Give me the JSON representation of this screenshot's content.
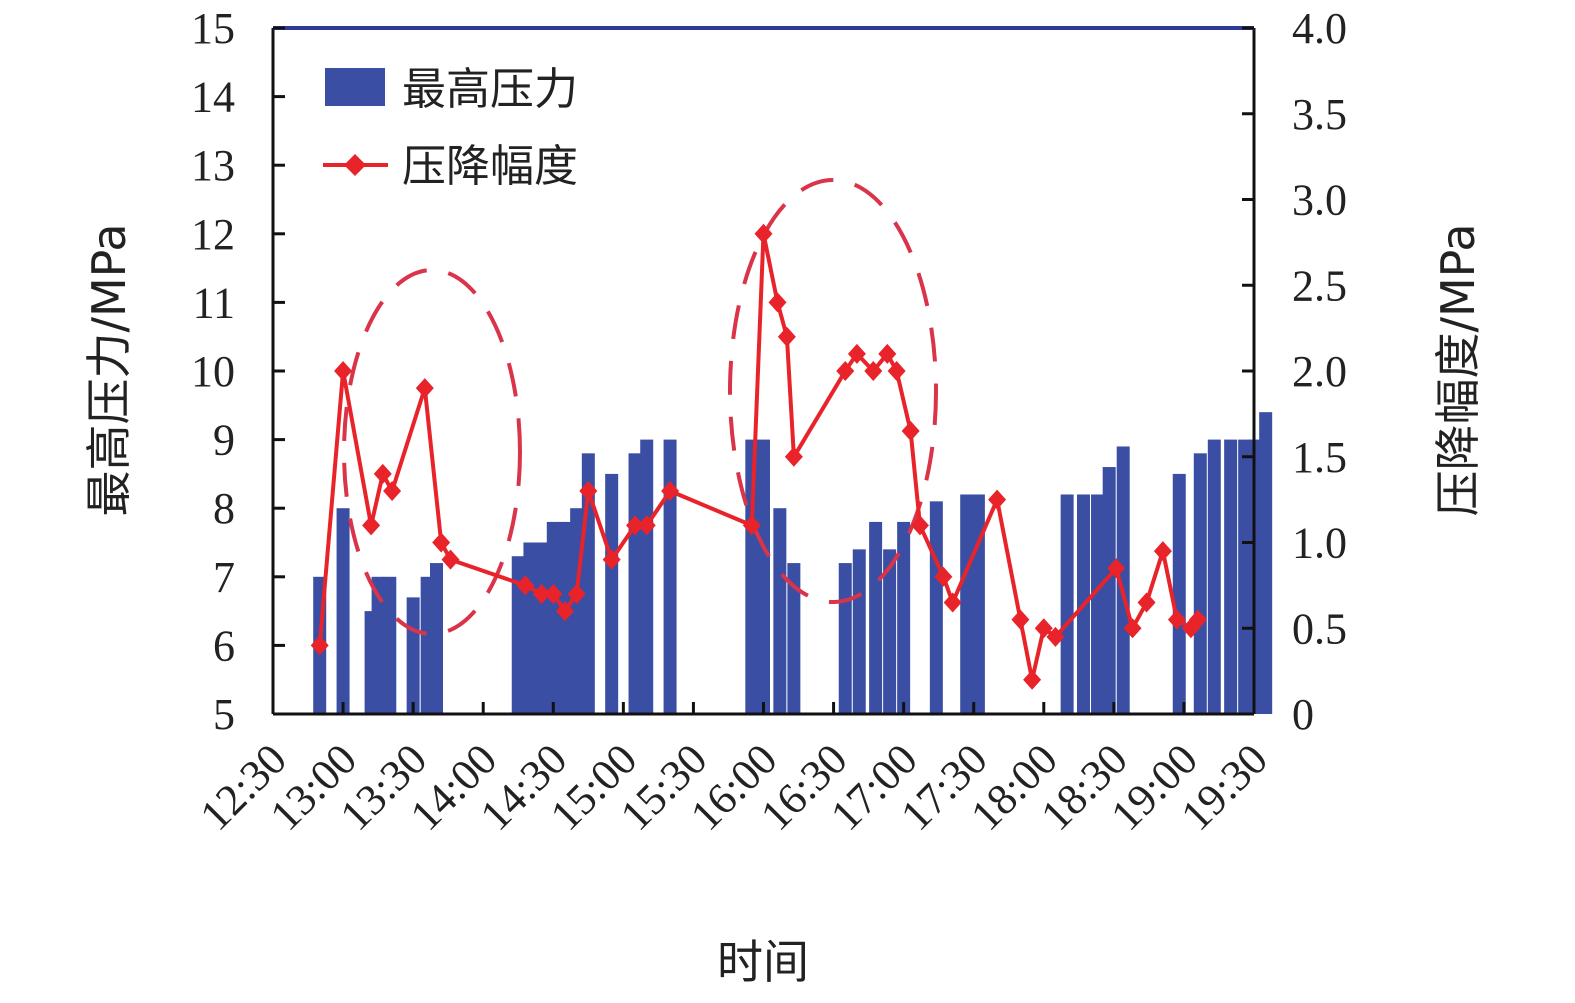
{
  "chart_data": {
    "type": "bar+line",
    "xlabel": "时间",
    "ylabel_left": "最高压力/MPa",
    "ylabel_right": "压降幅度/MPa",
    "x_ticks": [
      "12:30",
      "13:00",
      "13:30",
      "14:00",
      "14:30",
      "15:00",
      "15:30",
      "16:00",
      "16:30",
      "17:00",
      "17:30",
      "18:00",
      "18:30",
      "19:00",
      "19:30"
    ],
    "y_left_ticks": [
      "5",
      "6",
      "7",
      "8",
      "9",
      "10",
      "11",
      "12",
      "13",
      "14",
      "15"
    ],
    "y_right_ticks": [
      "0",
      "0.5",
      "1.0",
      "1.5",
      "2.0",
      "2.5",
      "3.0",
      "3.5",
      "4.0"
    ],
    "ylim_left": [
      5,
      15
    ],
    "ylim_right": [
      0,
      4
    ],
    "xlim": [
      "12:30",
      "19:30"
    ],
    "legend": {
      "position": "top-left",
      "bar_label": "最高压力",
      "line_label": "压降幅度"
    },
    "colors": {
      "bar": "#3a4fa3",
      "line": "#e8232a",
      "dashed": "#d9344a",
      "top_border": "#2f3a96"
    },
    "series": [
      {
        "name": "最高压力",
        "kind": "bar",
        "points": [
          [
            "12:50",
            7.0
          ],
          [
            "13:00",
            8.0
          ],
          [
            "13:12",
            6.5
          ],
          [
            "13:15",
            7.0
          ],
          [
            "13:20",
            7.0
          ],
          [
            "13:30",
            6.7
          ],
          [
            "13:36",
            7.0
          ],
          [
            "13:40",
            7.2
          ],
          [
            "14:15",
            7.3
          ],
          [
            "14:20",
            7.5
          ],
          [
            "14:25",
            7.5
          ],
          [
            "14:30",
            7.8
          ],
          [
            "14:35",
            7.8
          ],
          [
            "14:40",
            8.0
          ],
          [
            "14:45",
            8.8
          ],
          [
            "14:55",
            8.5
          ],
          [
            "15:05",
            8.8
          ],
          [
            "15:10",
            9.0
          ],
          [
            "15:20",
            9.0
          ],
          [
            "15:55",
            9.0
          ],
          [
            "16:00",
            9.0
          ],
          [
            "16:07",
            8.0
          ],
          [
            "16:13",
            7.2
          ],
          [
            "16:35",
            7.2
          ],
          [
            "16:41",
            7.4
          ],
          [
            "16:48",
            7.8
          ],
          [
            "16:54",
            7.4
          ],
          [
            "17:00",
            7.8
          ],
          [
            "17:14",
            8.1
          ],
          [
            "17:27",
            8.2
          ],
          [
            "17:32",
            8.2
          ],
          [
            "18:10",
            8.2
          ],
          [
            "18:17",
            8.2
          ],
          [
            "18:23",
            8.2
          ],
          [
            "18:28",
            8.6
          ],
          [
            "18:34",
            8.9
          ],
          [
            "18:58",
            8.5
          ],
          [
            "19:07",
            8.8
          ],
          [
            "19:13",
            9.0
          ],
          [
            "19:20",
            9.0
          ],
          [
            "19:26",
            9.0
          ],
          [
            "19:30",
            9.0
          ],
          [
            "19:35",
            9.4
          ]
        ]
      },
      {
        "name": "压降幅度",
        "kind": "line",
        "axis": "right",
        "points": [
          [
            "12:50",
            0.4
          ],
          [
            "13:00",
            2.0
          ],
          [
            "13:12",
            1.1
          ],
          [
            "13:17",
            1.4
          ],
          [
            "13:21",
            1.3
          ],
          [
            "13:35",
            1.9
          ],
          [
            "13:42",
            1.0
          ],
          [
            "13:46",
            0.9
          ],
          [
            "14:18",
            0.75
          ],
          [
            "14:25",
            0.7
          ],
          [
            "14:30",
            0.7
          ],
          [
            "14:35",
            0.6
          ],
          [
            "14:40",
            0.7
          ],
          [
            "14:45",
            1.3
          ],
          [
            "14:55",
            0.9
          ],
          [
            "15:05",
            1.1
          ],
          [
            "15:10",
            1.1
          ],
          [
            "15:20",
            1.3
          ],
          [
            "15:55",
            1.1
          ],
          [
            "16:00",
            2.8
          ],
          [
            "16:06",
            2.4
          ],
          [
            "16:10",
            2.2
          ],
          [
            "16:13",
            1.5
          ],
          [
            "16:35",
            2.0
          ],
          [
            "16:40",
            2.1
          ],
          [
            "16:47",
            2.0
          ],
          [
            "16:53",
            2.1
          ],
          [
            "16:57",
            2.0
          ],
          [
            "17:03",
            1.65
          ],
          [
            "17:07",
            1.1
          ],
          [
            "17:17",
            0.8
          ],
          [
            "17:21",
            0.65
          ],
          [
            "17:40",
            1.25
          ],
          [
            "17:50",
            0.55
          ],
          [
            "17:55",
            0.2
          ],
          [
            "18:00",
            0.5
          ],
          [
            "18:05",
            0.45
          ],
          [
            "18:31",
            0.85
          ],
          [
            "18:38",
            0.5
          ],
          [
            "18:44",
            0.65
          ],
          [
            "18:51",
            0.95
          ],
          [
            "18:57",
            0.55
          ],
          [
            "19:03",
            0.5
          ],
          [
            "19:06",
            0.55
          ]
        ]
      }
    ]
  }
}
